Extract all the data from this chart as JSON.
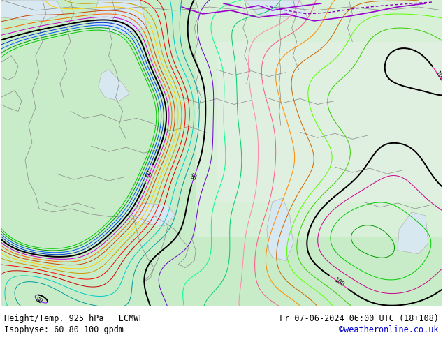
{
  "title_left": "Height/Temp. 925 hPa   ECMWF",
  "title_right": "Fr 07-06-2024 06:00 UTC (18+108)",
  "subtitle_left": "Isophyse: 60 80 100 gpdm",
  "subtitle_right": "©weatheronline.co.uk",
  "bg_color": "#c8ecc8",
  "land_color": "#c8ecc8",
  "sea_color": "#e8f0f8",
  "border_color": "#888888",
  "footer_bg": "#ffffff",
  "footer_text_color": "#000000",
  "credit_color": "#0000cc",
  "fig_width": 6.34,
  "fig_height": 4.9,
  "dpi": 100
}
